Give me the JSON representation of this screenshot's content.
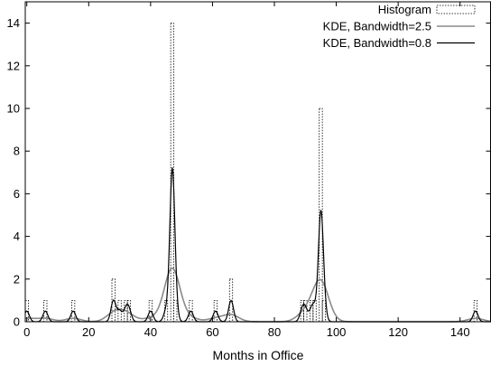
{
  "chart_data": {
    "type": "line",
    "title": "",
    "xlabel": "Months in Office",
    "ylabel": "",
    "xlim": [
      -0.5,
      150
    ],
    "ylim": [
      0,
      15
    ],
    "xticks": [
      0,
      20,
      40,
      60,
      80,
      100,
      120,
      140
    ],
    "yticks": [
      0,
      2,
      4,
      6,
      8,
      10,
      12,
      14
    ],
    "tick_labels_x": [
      "0",
      "20",
      "40",
      "60",
      "80",
      "100",
      "120",
      "140"
    ],
    "tick_labels_y": [
      "0",
      "2",
      "4",
      "6",
      "8",
      "10",
      "12",
      "14"
    ],
    "grid": false,
    "legend_position": "top-right",
    "series": [
      {
        "name": "Histogram",
        "kind": "histogram",
        "style": "dotted",
        "color": "#000000",
        "bin_width": 1,
        "bins": [
          {
            "x": 0,
            "count": 1
          },
          {
            "x": 6,
            "count": 1
          },
          {
            "x": 15,
            "count": 1
          },
          {
            "x": 28,
            "count": 2
          },
          {
            "x": 30,
            "count": 1
          },
          {
            "x": 32,
            "count": 1
          },
          {
            "x": 33,
            "count": 1
          },
          {
            "x": 40,
            "count": 1
          },
          {
            "x": 45,
            "count": 1
          },
          {
            "x": 47,
            "count": 14
          },
          {
            "x": 48,
            "count": 1
          },
          {
            "x": 53,
            "count": 1
          },
          {
            "x": 61,
            "count": 1
          },
          {
            "x": 66,
            "count": 2
          },
          {
            "x": 89,
            "count": 1
          },
          {
            "x": 90,
            "count": 1
          },
          {
            "x": 92,
            "count": 1
          },
          {
            "x": 93,
            "count": 1
          },
          {
            "x": 95,
            "count": 10
          },
          {
            "x": 96,
            "count": 1
          },
          {
            "x": 145,
            "count": 1
          }
        ]
      },
      {
        "name": "KDE, Bandwidth=2.5",
        "kind": "kde",
        "bandwidth": 2.5,
        "color": "#8a8a8a"
      },
      {
        "name": "KDE, Bandwidth=0.8",
        "kind": "kde",
        "bandwidth": 0.8,
        "color": "#000000"
      }
    ]
  }
}
